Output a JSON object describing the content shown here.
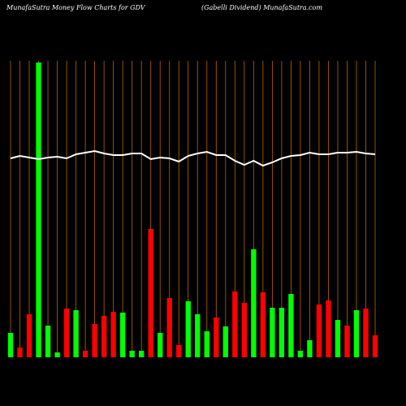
{
  "chart_data": {
    "type": "bar",
    "title": "MunafaSutra  Money Flow  Charts for GDV",
    "subtitle": "(Gabelli   Dividend) MunafaSutra.com",
    "background": "#000000",
    "grid": true,
    "grid_color": "#b86a00",
    "ylim": [
      0,
      365
    ],
    "series": [
      {
        "type": "bar",
        "values": [
          30,
          12,
          53,
          363,
          39,
          6,
          60,
          58,
          8,
          41,
          51,
          56,
          55,
          8,
          8,
          158,
          30,
          73,
          15,
          69,
          53,
          32,
          49,
          38,
          81,
          67,
          133,
          80,
          61,
          61,
          78,
          8,
          21,
          65,
          70,
          46,
          39,
          58,
          60,
          27
        ],
        "colors": [
          "#00ff00",
          "#ff0000",
          "#ff0000",
          "#00ff00",
          "#00ff00",
          "#00ff00",
          "#ff0000",
          "#00ff00",
          "#ff0000",
          "#ff0000",
          "#ff0000",
          "#ff0000",
          "#00ff00",
          "#00ff00",
          "#00ff00",
          "#ff0000",
          "#00ff00",
          "#ff0000",
          "#ff0000",
          "#00ff00",
          "#00ff00",
          "#00ff00",
          "#ff0000",
          "#00ff00",
          "#ff0000",
          "#ff0000",
          "#00ff00",
          "#ff0000",
          "#00ff00",
          "#00ff00",
          "#00ff00",
          "#00ff00",
          "#00ff00",
          "#ff0000",
          "#ff0000",
          "#00ff00",
          "#ff0000",
          "#00ff00",
          "#ff0000",
          "#ff0000"
        ]
      },
      {
        "type": "line",
        "color": "#ffffff",
        "values": [
          245,
          248,
          246,
          244,
          246,
          247,
          245,
          250,
          252,
          254,
          251,
          249,
          249,
          251,
          251,
          244,
          246,
          245,
          241,
          248,
          251,
          253,
          249,
          249,
          242,
          237,
          242,
          236,
          240,
          245,
          248,
          249,
          252,
          250,
          250,
          252,
          252,
          253,
          251,
          250
        ]
      }
    ]
  }
}
